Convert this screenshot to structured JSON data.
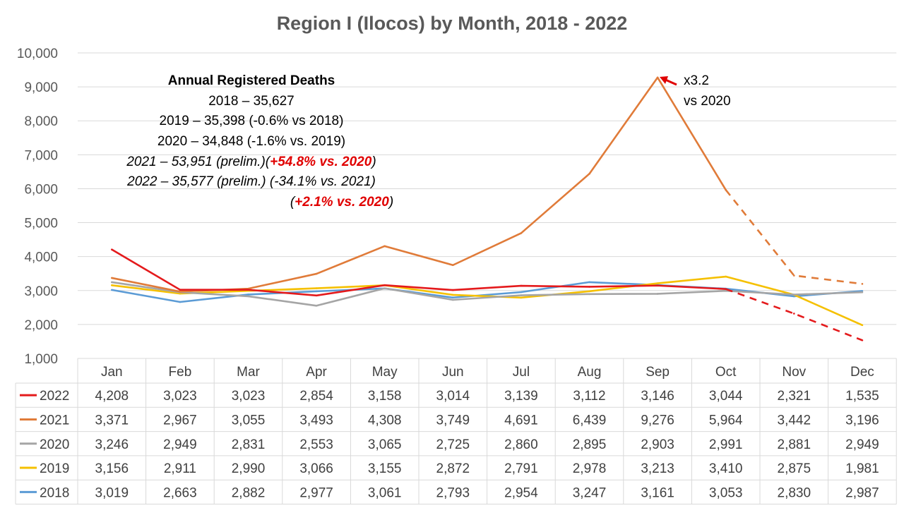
{
  "chart_data": {
    "type": "line",
    "title": "Region I (Ilocos) by Month, 2018 - 2022",
    "categories": [
      "Jan",
      "Feb",
      "Mar",
      "Apr",
      "May",
      "Jun",
      "Jul",
      "Aug",
      "Sep",
      "Oct",
      "Nov",
      "Dec"
    ],
    "ylim": [
      1000,
      10000
    ],
    "yticks": [
      "1,000",
      "2,000",
      "3,000",
      "4,000",
      "5,000",
      "6,000",
      "7,000",
      "8,000",
      "9,000",
      "10,000"
    ],
    "grid": true,
    "legend": "data-table",
    "series": [
      {
        "name": "2022",
        "color": "#e41a1c",
        "values": [
          4208,
          3023,
          3023,
          2854,
          3158,
          3014,
          3139,
          3112,
          3146,
          3044,
          2321,
          1535
        ],
        "labels": [
          "4,208",
          "3,023",
          "3,023",
          "2,854",
          "3,158",
          "3,014",
          "3,139",
          "3,112",
          "3,146",
          "3,044",
          "2,321",
          "1,535"
        ],
        "dashed_from_index": 9
      },
      {
        "name": "2021",
        "color": "#e07b39",
        "values": [
          3371,
          2967,
          3055,
          3493,
          4308,
          3749,
          4691,
          6439,
          9276,
          5964,
          3442,
          3196
        ],
        "labels": [
          "3,371",
          "2,967",
          "3,055",
          "3,493",
          "4,308",
          "3,749",
          "4,691",
          "6,439",
          "9,276",
          "5,964",
          "3,442",
          "3,196"
        ],
        "dashed_from_index": 9
      },
      {
        "name": "2020",
        "color": "#a5a5a5",
        "values": [
          3246,
          2949,
          2831,
          2553,
          3065,
          2725,
          2860,
          2895,
          2903,
          2991,
          2881,
          2949
        ],
        "labels": [
          "3,246",
          "2,949",
          "2,831",
          "2,553",
          "3,065",
          "2,725",
          "2,860",
          "2,895",
          "2,903",
          "2,991",
          "2,881",
          "2,949"
        ]
      },
      {
        "name": "2019",
        "color": "#f5c000",
        "values": [
          3156,
          2911,
          2990,
          3066,
          3155,
          2872,
          2791,
          2978,
          3213,
          3410,
          2875,
          1981
        ],
        "labels": [
          "3,156",
          "2,911",
          "2,990",
          "3,066",
          "3,155",
          "2,872",
          "2,791",
          "2,978",
          "3,213",
          "3,410",
          "2,875",
          "1,981"
        ]
      },
      {
        "name": "2018",
        "color": "#5b9bd5",
        "values": [
          3019,
          2663,
          2882,
          2977,
          3061,
          2793,
          2954,
          3247,
          3161,
          3053,
          2830,
          2987
        ],
        "labels": [
          "3,019",
          "2,663",
          "2,882",
          "2,977",
          "3,061",
          "2,793",
          "2,954",
          "3,247",
          "3,161",
          "3,053",
          "2,830",
          "2,987"
        ]
      }
    ],
    "annotations": {
      "heading": "Annual Registered Deaths",
      "line_2018": "2018 – 35,627",
      "line_2019": "2019 – 35,398 (-0.6% vs 2018)",
      "line_2020": "2020 – 34,848 (-1.6% vs. 2019)",
      "line_2021_a": "2021 – 53,951 (prelim.)(",
      "line_2021_b": "+54.8% vs. 2020",
      "line_2021_c": ")",
      "line_2022": "2022 – 35,577 (prelim.) (-34.1% vs. 2021)",
      "line_2022b_a": "(",
      "line_2022b_b": "+2.1% vs. 2020",
      "line_2022b_c": ")",
      "peak_note_1": "x3.2",
      "peak_note_2": "vs 2020",
      "arrow_color": "#e00000"
    }
  }
}
